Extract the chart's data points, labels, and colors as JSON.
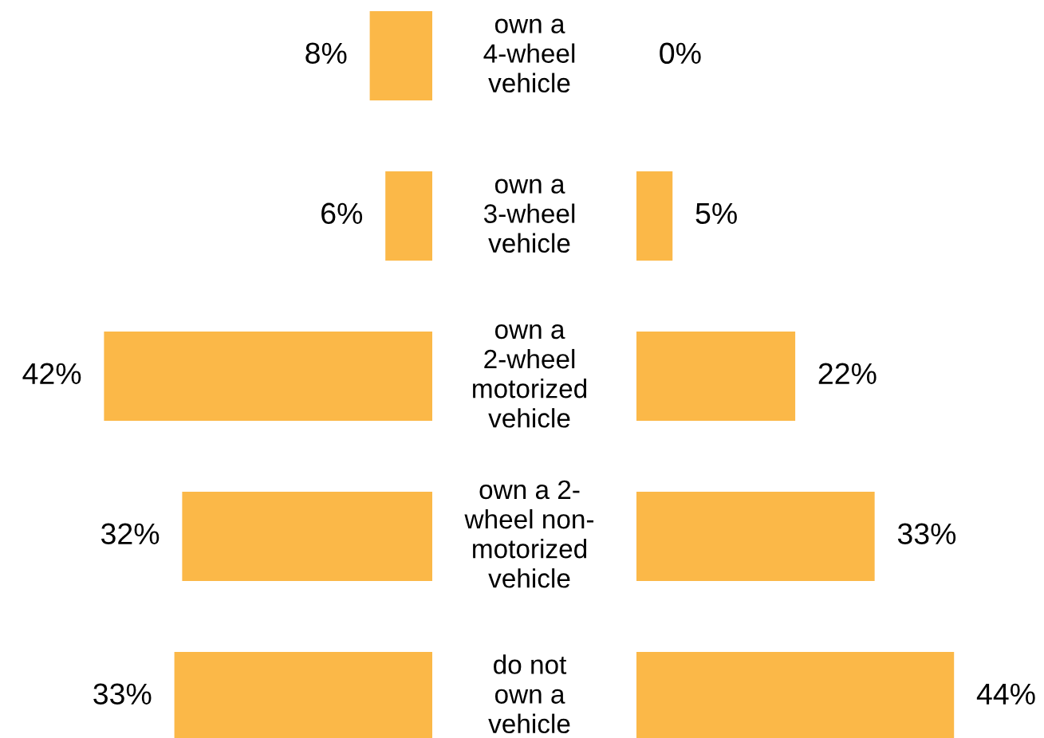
{
  "chart_data": [
    {
      "type": "bar",
      "orientation": "horizontal",
      "color": "#fbb848",
      "categories": [
        "own a\n4-wheel\nvehicle",
        "own a\n3-wheel\nvehicle",
        "own a\n2-wheel\nmotorized\nvehicle",
        "own a 2-\nwheel non-\nmotorized\nvehicle",
        "do not\nown a\nvehicle"
      ],
      "values": [
        8,
        6,
        42,
        32,
        33
      ],
      "value_labels": [
        "8%",
        "6%",
        "42%",
        "32%",
        "33%"
      ]
    },
    {
      "type": "bar",
      "orientation": "horizontal",
      "color": "#fbb848",
      "categories": [
        null,
        null,
        null,
        null,
        null
      ],
      "values": [
        0,
        5,
        22,
        33,
        44
      ],
      "value_labels": [
        "0%",
        "5%",
        "22%",
        "33%",
        "44%"
      ]
    }
  ]
}
